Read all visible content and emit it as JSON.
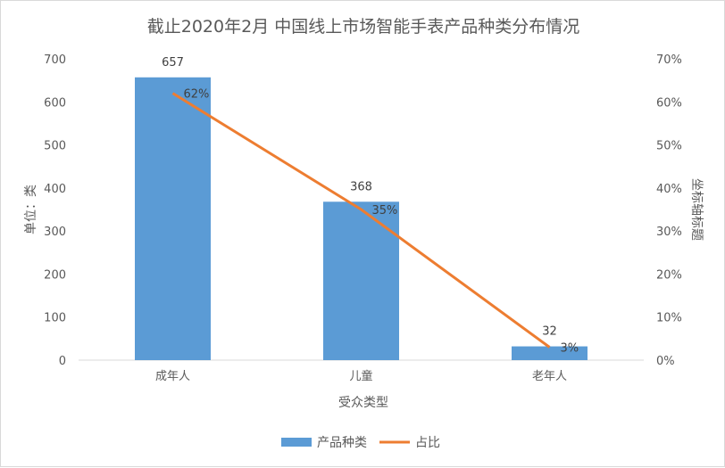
{
  "chart_data": {
    "type": "bar",
    "title": "截止2020年2月 中国线上市场智能手表产品种类分布情况",
    "categories": [
      "成年人",
      "儿童",
      "老年人"
    ],
    "xlabel": "受众类型",
    "ylabel": "单位：类",
    "y2label": "坐标轴标题",
    "ylim": [
      0,
      700
    ],
    "y2lim": [
      0,
      0.7
    ],
    "yticks": [
      "0",
      "100",
      "200",
      "300",
      "400",
      "500",
      "600",
      "700"
    ],
    "y2ticks": [
      "0%",
      "10%",
      "20%",
      "30%",
      "40%",
      "50%",
      "60%",
      "70%"
    ],
    "series": [
      {
        "name": "产品种类",
        "type": "bar",
        "axis": "left",
        "color": "#5b9bd5",
        "values": [
          657,
          368,
          32
        ],
        "labels": [
          "657",
          "368",
          "32"
        ]
      },
      {
        "name": "占比",
        "type": "line",
        "axis": "right",
        "color": "#ed7d31",
        "values": [
          0.62,
          0.35,
          0.03
        ],
        "labels": [
          "62%",
          "35%",
          "3%"
        ]
      }
    ],
    "legend_position": "bottom",
    "grid": false
  }
}
